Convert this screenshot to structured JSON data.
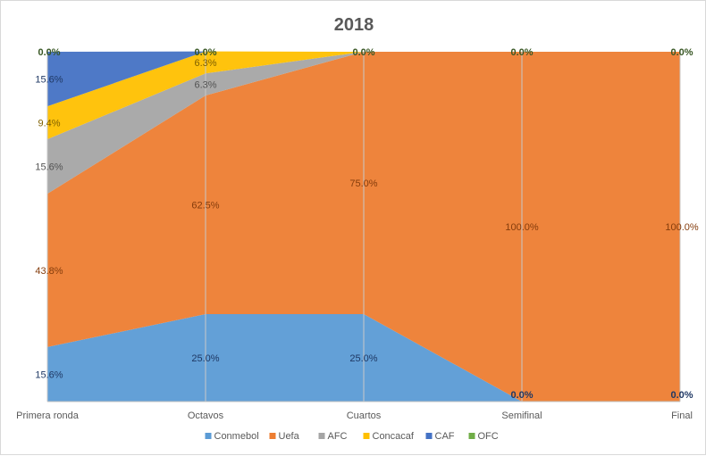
{
  "chart_data": {
    "type": "area",
    "stacked": "percent",
    "title": "2018",
    "xlabel": "",
    "ylabel": "",
    "categories": [
      "Primera ronda",
      "Octavos",
      "Cuartos",
      "Semifinal",
      "Final"
    ],
    "ylim": [
      0,
      100
    ],
    "grid": "vertical",
    "legend_position": "bottom",
    "series": [
      {
        "name": "Conmebol",
        "color": "#5b9bd5",
        "values": [
          15.6,
          25.0,
          25.0,
          0.0,
          0.0
        ],
        "labels": [
          "15.6%",
          "25.0%",
          "25.0%",
          "0.0%",
          "0.0%"
        ]
      },
      {
        "name": "Uefa",
        "color": "#ed7d31",
        "values": [
          43.8,
          62.5,
          75.0,
          100.0,
          100.0
        ],
        "labels": [
          "43.8%",
          "62.5%",
          "75.0%",
          "100.0%",
          "100.0%"
        ]
      },
      {
        "name": "AFC",
        "color": "#a5a5a5",
        "values": [
          15.6,
          6.3,
          0.0,
          0.0,
          0.0
        ],
        "labels": [
          "15.6%",
          "6.3%",
          "0.0%",
          "0.0%",
          "0.0%"
        ]
      },
      {
        "name": "Concacaf",
        "color": "#ffc000",
        "values": [
          9.4,
          6.3,
          0.0,
          0.0,
          0.0
        ],
        "labels": [
          "9.4%",
          "6.3%",
          "0.0%",
          "0.0%",
          "0.0%"
        ]
      },
      {
        "name": "CAF",
        "color": "#4472c4",
        "values": [
          15.6,
          0.0,
          0.0,
          0.0,
          0.0
        ],
        "labels": [
          "15.6%",
          "0.0%",
          "0.0%",
          "0.0%",
          "0.0%"
        ]
      },
      {
        "name": "OFC",
        "color": "#70ad47",
        "values": [
          0.0,
          0.0,
          0.0,
          0.0,
          0.0
        ],
        "labels": [
          "0.0%",
          "0.0%",
          "0.0%",
          "0.0%",
          "0.0%"
        ]
      }
    ]
  }
}
